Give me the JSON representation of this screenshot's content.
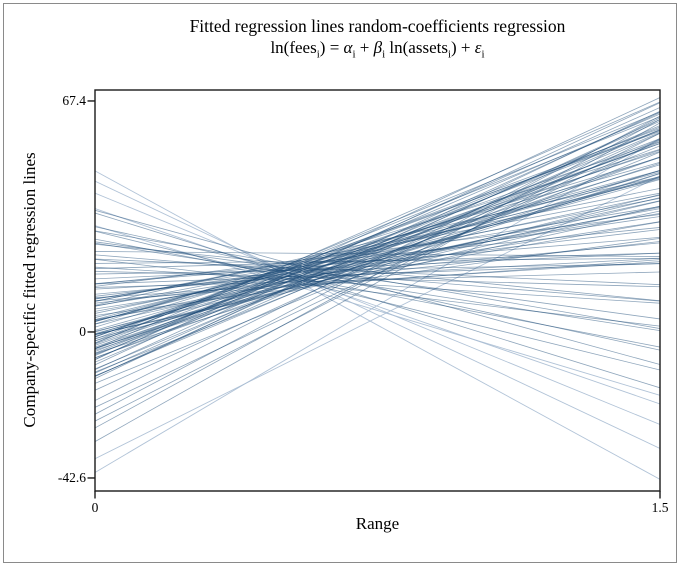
{
  "chart_data": {
    "type": "line",
    "title": "Fitted regression lines random-coefficients regression",
    "subtitle_plain": "ln(fees_i) = α_i + β_i ln(assets_i) + ε_i",
    "subtitle_segments": [
      {
        "t": "ln(fees"
      },
      {
        "t": "i",
        "sub": true
      },
      {
        "t": ") = "
      },
      {
        "t": "α",
        "it": true
      },
      {
        "t": "i",
        "sub": true
      },
      {
        "t": " + "
      },
      {
        "t": "β",
        "it": true
      },
      {
        "t": "i",
        "sub": true
      },
      {
        "t": " ln(assets"
      },
      {
        "t": "i",
        "sub": true
      },
      {
        "t": ") + "
      },
      {
        "t": "ε",
        "it": true
      },
      {
        "t": "i",
        "sub": true
      }
    ],
    "xlabel": "Range",
    "ylabel": "Company-specific fitted regression lines",
    "xlim": [
      0,
      1.5
    ],
    "ylim": [
      -46.4,
      70.6
    ],
    "xticks": [
      {
        "value": 0,
        "label": "0"
      },
      {
        "value": 1.5,
        "label": "1.5"
      }
    ],
    "yticks": [
      {
        "value": 67.4,
        "label": "67.4"
      },
      {
        "value": 0,
        "label": "0"
      },
      {
        "value": -42.6,
        "label": "-42.6"
      }
    ],
    "grid": false,
    "legend": false,
    "line_model": "y = intercept + slope * x over x in [0, 1.5]",
    "lines": [
      [
        9.1,
        8
      ],
      [
        14.1,
        9
      ],
      [
        11.0,
        10
      ],
      [
        14.0,
        11
      ],
      [
        8.4,
        12
      ],
      [
        10.4,
        13
      ],
      [
        13.3,
        14
      ],
      [
        4.8,
        15
      ],
      [
        9.7,
        16
      ],
      [
        6.7,
        17
      ],
      [
        9.6,
        18
      ],
      [
        3.6,
        19
      ],
      [
        6.0,
        20
      ],
      [
        9.0,
        21
      ],
      [
        3.4,
        22
      ],
      [
        5.4,
        23
      ],
      [
        -0.7,
        24
      ],
      [
        7.8,
        25
      ],
      [
        0.2,
        26
      ],
      [
        4.2,
        27
      ],
      [
        -1.9,
        28
      ],
      [
        3.1,
        29
      ],
      [
        0.0,
        30
      ],
      [
        3.0,
        31
      ],
      [
        -2.6,
        32
      ],
      [
        -0.7,
        33
      ],
      [
        2.3,
        34
      ],
      [
        -6.3,
        35
      ],
      [
        -1.3,
        36
      ],
      [
        -4.4,
        37
      ],
      [
        -1.4,
        38
      ],
      [
        -7.5,
        39
      ],
      [
        -5.0,
        40
      ],
      [
        -2.1,
        41
      ],
      [
        -7.6,
        42
      ],
      [
        -5.7,
        43
      ],
      [
        -11.7,
        44
      ],
      [
        -3.3,
        45
      ],
      [
        -10.8,
        46
      ],
      [
        -6.9,
        47
      ],
      [
        -12.9,
        48
      ],
      [
        -8.0,
        49
      ],
      [
        -11.0,
        50
      ],
      [
        -8.1,
        51
      ],
      [
        -13.6,
        52
      ],
      [
        7.6,
        18
      ],
      [
        8.9,
        22
      ],
      [
        -0.8,
        25
      ],
      [
        3.1,
        28
      ],
      [
        -0.5,
        30
      ],
      [
        1.4,
        33
      ],
      [
        -5.3,
        35
      ],
      [
        -3.9,
        38
      ],
      [
        -1.5,
        40
      ],
      [
        -6.6,
        42
      ],
      [
        -6.2,
        44
      ],
      [
        -12.8,
        46
      ],
      [
        -4.9,
        48
      ],
      [
        -13.0,
        50
      ],
      [
        7.5,
        21
      ],
      [
        -0.8,
        26
      ],
      [
        0.5,
        31
      ],
      [
        -4.8,
        36
      ],
      [
        -2.6,
        41
      ],
      [
        -8.8,
        46
      ],
      [
        -9.6,
        51
      ],
      [
        2.3,
        24
      ],
      [
        3.6,
        29
      ],
      [
        -4.7,
        34
      ],
      [
        -3.5,
        39
      ],
      [
        -3.2,
        44
      ],
      [
        -12.0,
        49
      ],
      [
        16.9,
        2
      ],
      [
        14.0,
        4
      ],
      [
        12.5,
        6
      ],
      [
        18.5,
        3
      ],
      [
        10.0,
        7
      ],
      [
        15.5,
        5
      ],
      [
        20.0,
        1
      ],
      [
        13.0,
        3
      ],
      [
        17.7,
        -3
      ],
      [
        21.3,
        -5
      ],
      [
        18.9,
        -7
      ],
      [
        22.5,
        -9
      ],
      [
        25.6,
        -11
      ],
      [
        21.2,
        -13
      ],
      [
        26.3,
        -15
      ],
      [
        25.9,
        -17
      ],
      [
        29.5,
        -19
      ],
      [
        27.1,
        -21
      ],
      [
        30.7,
        -24
      ],
      [
        29.4,
        -27
      ],
      [
        35.5,
        -30
      ],
      [
        34.7,
        -34
      ],
      [
        -17.0,
        50
      ],
      [
        -20.0,
        55
      ],
      [
        -24.0,
        58
      ],
      [
        -28.0,
        60
      ],
      [
        -32.0,
        62
      ],
      [
        -15.0,
        45
      ],
      [
        -22.0,
        52
      ],
      [
        -26.0,
        56
      ],
      [
        23.5,
        -1
      ]
    ],
    "outlier_lines": [
      [
        47.0,
        -60
      ],
      [
        40.5,
        -45
      ],
      [
        36.0,
        -38
      ],
      [
        -41.0,
        65
      ],
      [
        -37.0,
        55
      ],
      [
        31.0,
        -33
      ],
      [
        44.0,
        -52
      ]
    ],
    "colors": {
      "line": "#1f4e79",
      "outlier_line": "#a9bdd3",
      "axis": "#1a1a1a",
      "frame": "#8a8a8a",
      "background": "#ffffff",
      "text": "#000000"
    }
  }
}
